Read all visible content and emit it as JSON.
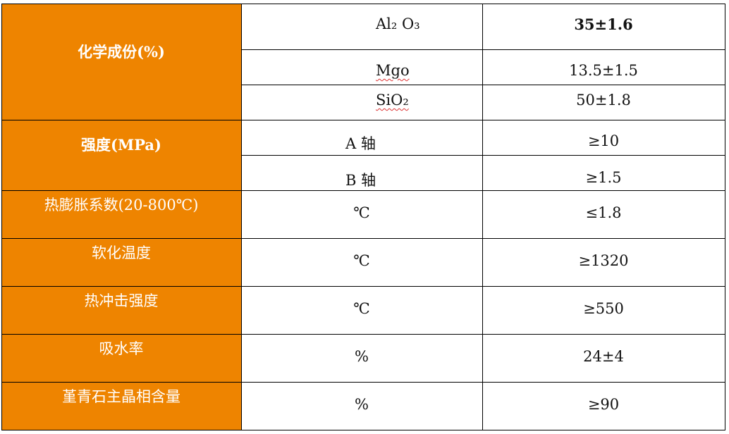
{
  "rows": [
    {
      "label": "化学成份(%)",
      "items": [
        {
          "name": "Al₂ O₃",
          "value": "35±1.6"
        },
        {
          "name": "Mgo",
          "value": "13.5±1.5"
        },
        {
          "name": "SiO₂",
          "value": "50±1.8"
        }
      ]
    },
    {
      "label": "强度(MPa)",
      "items": [
        {
          "name": "A 轴",
          "value": "≥10"
        },
        {
          "name": "B 轴",
          "value": "≥1.5"
        }
      ]
    },
    {
      "label": "热膨胀系数(20-800℃)",
      "unit": "℃",
      "value": "≤1.8"
    },
    {
      "label": "软化温度",
      "unit": "℃",
      "value": "≥1320"
    },
    {
      "label": "热冲击强度",
      "unit": "℃",
      "value": "≥550"
    },
    {
      "label": "吸水率",
      "unit": "%",
      "value": "24±4"
    },
    {
      "label": "堇青石主晶相含量",
      "unit": "%",
      "value": "≥90"
    }
  ],
  "colors": {
    "header_fill": "#EE8400",
    "header_text": "#FFFFFF"
  }
}
